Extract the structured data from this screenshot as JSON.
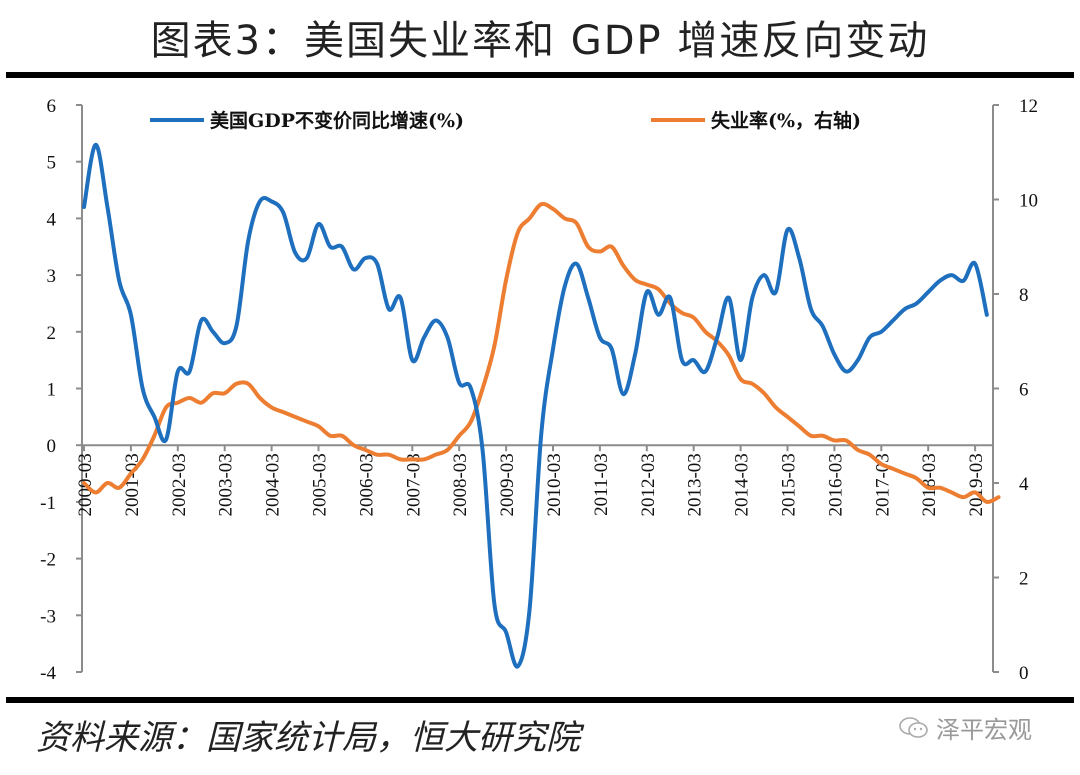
{
  "title": "图表3：美国失业率和 GDP 增速反向变动",
  "source": "资料来源：国家统计局，恒大研究院",
  "watermark": "泽平宏观",
  "colors": {
    "gdp": "#1f6fbf",
    "unemployment": "#ed7d31",
    "axis": "#8c8c8c"
  },
  "chart_data": {
    "type": "line",
    "title": "图表3：美国失业率和 GDP 增速反向变动",
    "xlabel": "",
    "ylabel": "",
    "y_left": {
      "range": [
        -4,
        6
      ],
      "ticks": [
        "-4",
        "-3",
        "-2",
        "-1",
        "0",
        "1",
        "2",
        "3",
        "4",
        "5",
        "6"
      ]
    },
    "y_right": {
      "range": [
        0,
        12
      ],
      "ticks": [
        "0",
        "2",
        "4",
        "6",
        "8",
        "10",
        "12"
      ]
    },
    "x_ticks": [
      "2000-03",
      "2001-03",
      "2002-03",
      "2003-03",
      "2004-03",
      "2005-03",
      "2006-03",
      "2007-03",
      "2008-03",
      "2009-03",
      "2010-03",
      "2011-03",
      "2012-03",
      "2013-03",
      "2014-03",
      "2015-03",
      "2016-03",
      "2017-03",
      "2018-03",
      "2019-03"
    ],
    "legend": [
      {
        "label": "美国GDP不变价同比增速(%)",
        "series": "gdp",
        "position": "top-left"
      },
      {
        "label": "失业率(%，右轴)",
        "series": "unemployment",
        "position": "top-right"
      }
    ],
    "grid": false,
    "series": [
      {
        "name": "美国GDP不变价同比增速(%)",
        "axis": "left",
        "frequency": "quarterly",
        "start": "2000-03",
        "values": [
          4.2,
          5.3,
          4.2,
          2.9,
          2.3,
          1.0,
          0.5,
          0.1,
          1.3,
          1.3,
          2.2,
          2.0,
          1.8,
          2.1,
          3.6,
          4.3,
          4.3,
          4.1,
          3.4,
          3.3,
          3.9,
          3.5,
          3.5,
          3.1,
          3.3,
          3.2,
          2.4,
          2.6,
          1.5,
          1.9,
          2.2,
          1.9,
          1.1,
          1.0,
          -0.1,
          -2.8,
          -3.3,
          -3.9,
          -2.9,
          0.2,
          1.7,
          2.8,
          3.2,
          2.6,
          1.9,
          1.7,
          0.9,
          1.6,
          2.7,
          2.3,
          2.6,
          1.5,
          1.5,
          1.3,
          1.9,
          2.6,
          1.5,
          2.6,
          3.0,
          2.7,
          3.8,
          3.3,
          2.4,
          2.1,
          1.6,
          1.3,
          1.5,
          1.9,
          2.0,
          2.2,
          2.4,
          2.5,
          2.7,
          2.9,
          3.0,
          2.9,
          3.2,
          2.3
        ]
      },
      {
        "name": "失业率(%，右轴)",
        "axis": "right",
        "frequency": "quarterly",
        "start": "2000-03",
        "values": [
          4.0,
          3.8,
          4.0,
          3.9,
          4.2,
          4.5,
          5.0,
          5.6,
          5.7,
          5.8,
          5.7,
          5.9,
          5.9,
          6.1,
          6.1,
          5.8,
          5.6,
          5.5,
          5.4,
          5.3,
          5.2,
          5.0,
          5.0,
          4.8,
          4.7,
          4.6,
          4.6,
          4.5,
          4.5,
          4.5,
          4.6,
          4.7,
          5.0,
          5.3,
          6.0,
          6.9,
          8.3,
          9.3,
          9.6,
          9.9,
          9.8,
          9.6,
          9.5,
          9.0,
          8.9,
          9.0,
          8.6,
          8.3,
          8.2,
          8.1,
          7.8,
          7.6,
          7.5,
          7.2,
          7.0,
          6.7,
          6.2,
          6.1,
          5.9,
          5.6,
          5.4,
          5.2,
          5.0,
          5.0,
          4.9,
          4.9,
          4.7,
          4.6,
          4.4,
          4.3,
          4.2,
          4.1,
          3.9,
          3.9,
          3.8,
          3.7,
          3.8,
          3.6,
          3.7
        ]
      }
    ]
  }
}
